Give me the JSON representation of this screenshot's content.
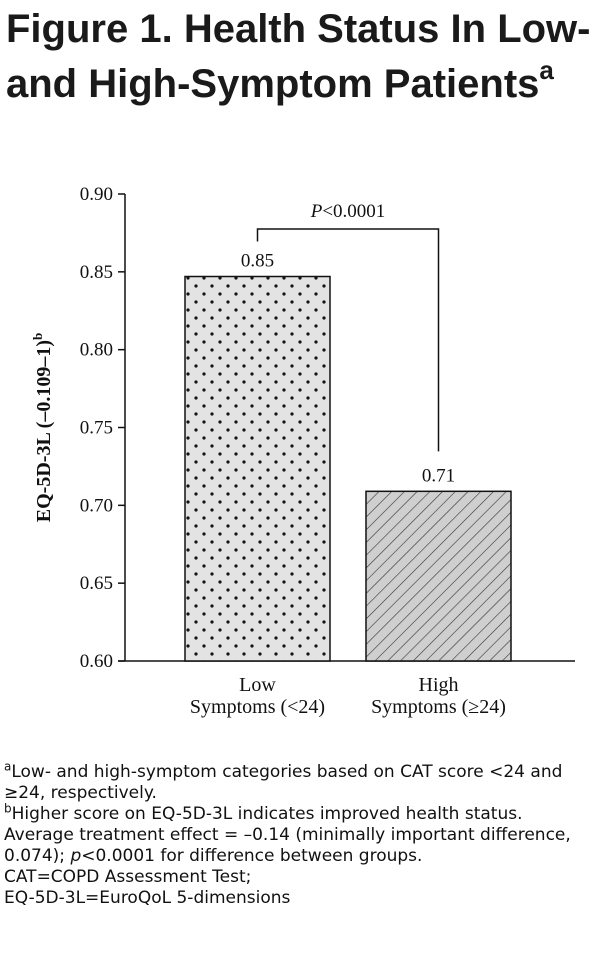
{
  "figure": {
    "title_main": "Figure 1. Health Status In Low- and High-Symptom Patients",
    "title_sup": "a"
  },
  "chart_data": {
    "type": "bar",
    "categories": [
      [
        "Low",
        "Symptoms (<24)"
      ],
      [
        "High",
        "Symptoms (≥24)"
      ]
    ],
    "values": [
      0.847,
      0.709
    ],
    "data_labels": [
      "0.85",
      "0.71"
    ],
    "fill_patterns": [
      "dots",
      "hatch"
    ],
    "ylabel": "EQ-5D-3L (–0.109–1)",
    "ylabel_sup": "b",
    "ylim": [
      0.6,
      0.9
    ],
    "yticks": [
      "0.60",
      "0.65",
      "0.70",
      "0.75",
      "0.80",
      "0.85",
      "0.90"
    ],
    "grid": false,
    "annotation": {
      "italic": "P",
      "text": "<0.0001"
    },
    "colors": {
      "bar_fill": "#e3e3e3",
      "hatch_fill": "#cfcfcf",
      "ink": "#111111"
    }
  },
  "footnotes": [
    {
      "sup": "a",
      "text": "Low- and high-symptom categories based on CAT score <24 and ≥24, respectively."
    },
    {
      "sup": "b",
      "text": "Higher score on EQ-5D-3L indicates improved health status. Average treatment effect = –0.14 (minimally important difference, 0.074); ",
      "italic": "p",
      "tail": "<0.0001 for difference between groups."
    },
    {
      "sup": "",
      "text": "CAT=COPD Assessment Test;"
    },
    {
      "sup": "",
      "text": "EQ-5D-3L=EuroQoL 5-dimensions"
    }
  ]
}
